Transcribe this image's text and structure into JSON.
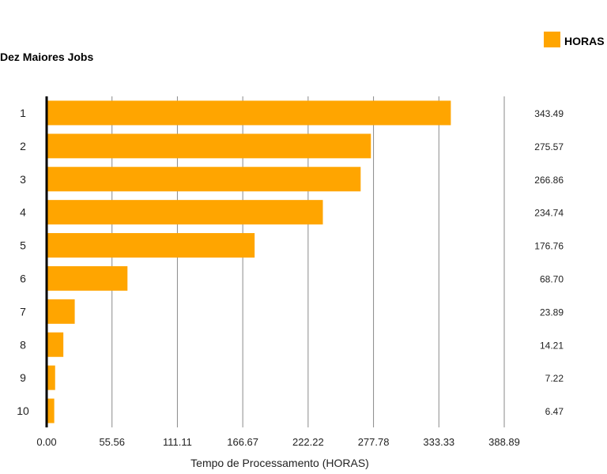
{
  "chart_data": {
    "type": "bar",
    "orientation": "horizontal",
    "title": "Dez Maiores Jobs",
    "xlabel": "Tempo de Processamento (HORAS)",
    "ylabel": "",
    "categories": [
      "1",
      "2",
      "3",
      "4",
      "5",
      "6",
      "7",
      "8",
      "9",
      "10"
    ],
    "series": [
      {
        "name": "HORAS",
        "color": "#ffa500",
        "values": [
          343.49,
          275.57,
          266.86,
          234.74,
          176.76,
          68.7,
          23.89,
          14.21,
          7.22,
          6.47
        ],
        "value_labels": [
          "343.49",
          "275.57",
          "266.86",
          "234.74",
          "176.76",
          "68.70",
          "23.89",
          "14.21",
          "7.22",
          "6.47"
        ]
      }
    ],
    "xlim": [
      0,
      388.89
    ],
    "xticks": [
      0,
      55.56,
      111.11,
      166.67,
      222.22,
      277.78,
      333.33,
      388.89
    ],
    "xtick_labels": [
      "0.00",
      "55.56",
      "111.11",
      "166.67",
      "222.22",
      "277.78",
      "333.33",
      "388.89"
    ],
    "grid": true,
    "legend_position": "top-right"
  }
}
